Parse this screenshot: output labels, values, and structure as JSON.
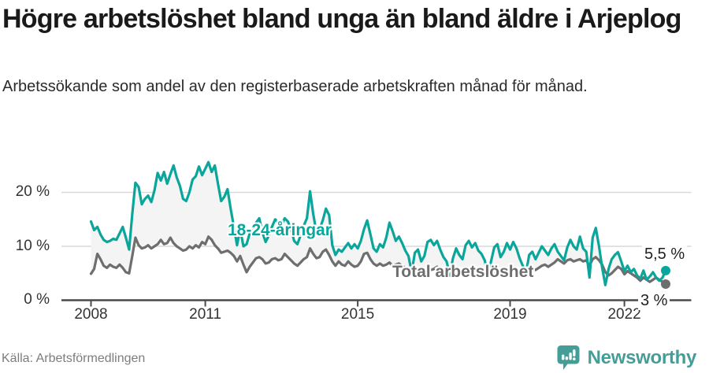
{
  "header": {
    "title": "Högre arbetslöshet bland unga än bland äldre i Arjeplog",
    "subtitle": "Arbetssökande som andel av den registerbaserade arbetskraften månad för månad."
  },
  "footer": {
    "source": "Källa: Arbetsförmedlingen",
    "brand": "Newsworthy"
  },
  "colors": {
    "youth_line": "#0aa69b",
    "total_line": "#6e6e6e",
    "band_fill": "#f4f4f4",
    "grid": "#d9d9d9",
    "axis": "#4a4a4a",
    "brand_teal": "#459d98",
    "text_dark": "#1a1a1a"
  },
  "chart_data": {
    "type": "line",
    "title": "Högre arbetslöshet bland unga än bland äldre i Arjeplog",
    "xlabel": "",
    "ylabel": "",
    "unit": "%",
    "x_period": "monthly",
    "x_start": "2008-01",
    "x_end": "2023-02",
    "ylim": [
      0,
      27
    ],
    "grid": true,
    "legend_position": "inline-labels",
    "y_ticks": [
      0,
      10,
      20
    ],
    "y_tick_labels": [
      "0 %",
      "10 %",
      "20 %"
    ],
    "x_tick_labels": [
      "2008",
      "2011",
      "2015",
      "2019",
      "2022"
    ],
    "x_tick_month_index": [
      0,
      36,
      84,
      132,
      168
    ],
    "series": [
      {
        "name": "18-24-åringar",
        "color": "#0aa69b",
        "end_label": "5,5 %",
        "last_value": 5.5,
        "values": [
          14.6,
          13,
          13.6,
          12.2,
          11.2,
          10.8,
          11,
          11.4,
          11.2,
          12.4,
          13.6,
          11.6,
          9.4,
          16,
          21.8,
          21,
          17.8,
          18.8,
          19.4,
          18.2,
          20.4,
          23.6,
          22.2,
          23.8,
          21.6,
          23.4,
          25,
          22.8,
          21.2,
          18.8,
          18.4,
          20,
          22.4,
          23,
          24.8,
          23.2,
          24.4,
          25.6,
          23.8,
          25,
          21.6,
          18.4,
          19.2,
          20.6,
          17,
          13.6,
          10.2,
          13.2,
          10,
          10.4,
          12.4,
          13,
          14.4,
          15.2,
          12.6,
          10.8,
          12,
          13.6,
          15,
          14.4,
          14,
          15.2,
          14.6,
          13.2,
          11,
          10.4,
          12,
          13.8,
          15.2,
          20.2,
          16,
          12.6,
          13.2,
          14.8,
          17,
          15.8,
          10.2,
          8.4,
          9.4,
          9,
          9.8,
          10.6,
          9.6,
          10.4,
          9.6,
          11,
          13.2,
          14.8,
          12.2,
          9.6,
          9,
          10.4,
          9.8,
          11.6,
          14.4,
          12.8,
          11,
          11.8,
          10.6,
          9.2,
          8.2,
          5.2,
          8.8,
          9.4,
          7.2,
          8.2,
          10.8,
          11.2,
          10.2,
          11,
          9.4,
          8,
          7.2,
          4.8,
          7.8,
          9.6,
          8.4,
          7.6,
          10.2,
          11,
          9.8,
          10.6,
          9.2,
          8.6,
          7.4,
          4.6,
          7.2,
          9.8,
          10.4,
          8,
          9,
          10.6,
          9.4,
          10.8,
          9.6,
          7.8,
          6.4,
          5,
          8.4,
          9,
          7.6,
          8.8,
          10,
          9.2,
          8.4,
          9.6,
          10.4,
          9,
          8.2,
          7.4,
          9.8,
          11.2,
          10,
          9.4,
          11.8,
          9.6,
          9,
          4.2,
          11.6,
          13.4,
          10,
          6,
          2.8,
          5.8,
          7.6,
          8.4,
          8.9,
          7.2,
          5.4,
          6.4,
          5.2,
          5.8,
          4.6,
          4,
          5.5,
          3.8,
          4.4,
          5.2,
          4.2,
          3.6,
          4.2,
          5.5
        ]
      },
      {
        "name": "Total arbetslöshet",
        "color": "#6e6e6e",
        "end_label": "3 %",
        "last_value": 3.0,
        "values": [
          4.9,
          5.8,
          8.6,
          7.6,
          6.4,
          6,
          6.6,
          6.2,
          6,
          6.6,
          6,
          5.2,
          5,
          8.2,
          11.6,
          10.2,
          9.6,
          9.8,
          10.2,
          9.6,
          10,
          10.4,
          11.2,
          10.4,
          10.6,
          11.6,
          10.6,
          10,
          9.6,
          9.2,
          9.4,
          10,
          9.6,
          10.2,
          9.8,
          10.8,
          10.4,
          11.8,
          11.2,
          10.2,
          9.6,
          8.8,
          9,
          9.2,
          8.8,
          8.2,
          7.2,
          8.2,
          6.6,
          5.2,
          6.2,
          7,
          7.8,
          8,
          7.6,
          6.8,
          7,
          7.6,
          7.8,
          7.4,
          7.6,
          8.6,
          8,
          7.4,
          6.8,
          6.4,
          7,
          7.6,
          8,
          9.6,
          8.6,
          7.8,
          8,
          9,
          9.4,
          8.4,
          7.2,
          6.4,
          7.2,
          6.6,
          6.4,
          7.2,
          6.6,
          6.2,
          6.4,
          7.2,
          8.6,
          8.8,
          7.6,
          6.8,
          6.4,
          6.8,
          6.4,
          6.6,
          7,
          6.4,
          6.6,
          6.8,
          6.4,
          6,
          5.6,
          5.2,
          5.8,
          5.6,
          5.2,
          5.6,
          6,
          5.6,
          5.8,
          6.2,
          5.8,
          5.4,
          5,
          4.6,
          5.4,
          5.2,
          4.8,
          5.2,
          5.8,
          5.4,
          5.6,
          6,
          5.6,
          5.2,
          4.8,
          4.4,
          5.2,
          5,
          4.6,
          5,
          5.4,
          5.2,
          5.4,
          5.8,
          6,
          5.6,
          5,
          4.8,
          5.6,
          5.8,
          5.6,
          6,
          6.4,
          6.6,
          6.2,
          6.6,
          7,
          7.6,
          7.2,
          6.8,
          7.4,
          7.6,
          7.2,
          7.4,
          7.6,
          7.2,
          7.4,
          6.4,
          7.6,
          8,
          7.4,
          6.6,
          5.2,
          4.6,
          5,
          5.6,
          6.2,
          5.8,
          4.8,
          5.4,
          5,
          4.6,
          4.2,
          3.6,
          4.2,
          3.8,
          3.4,
          3.8,
          4.2,
          3.8,
          3.4,
          3
        ]
      }
    ]
  }
}
